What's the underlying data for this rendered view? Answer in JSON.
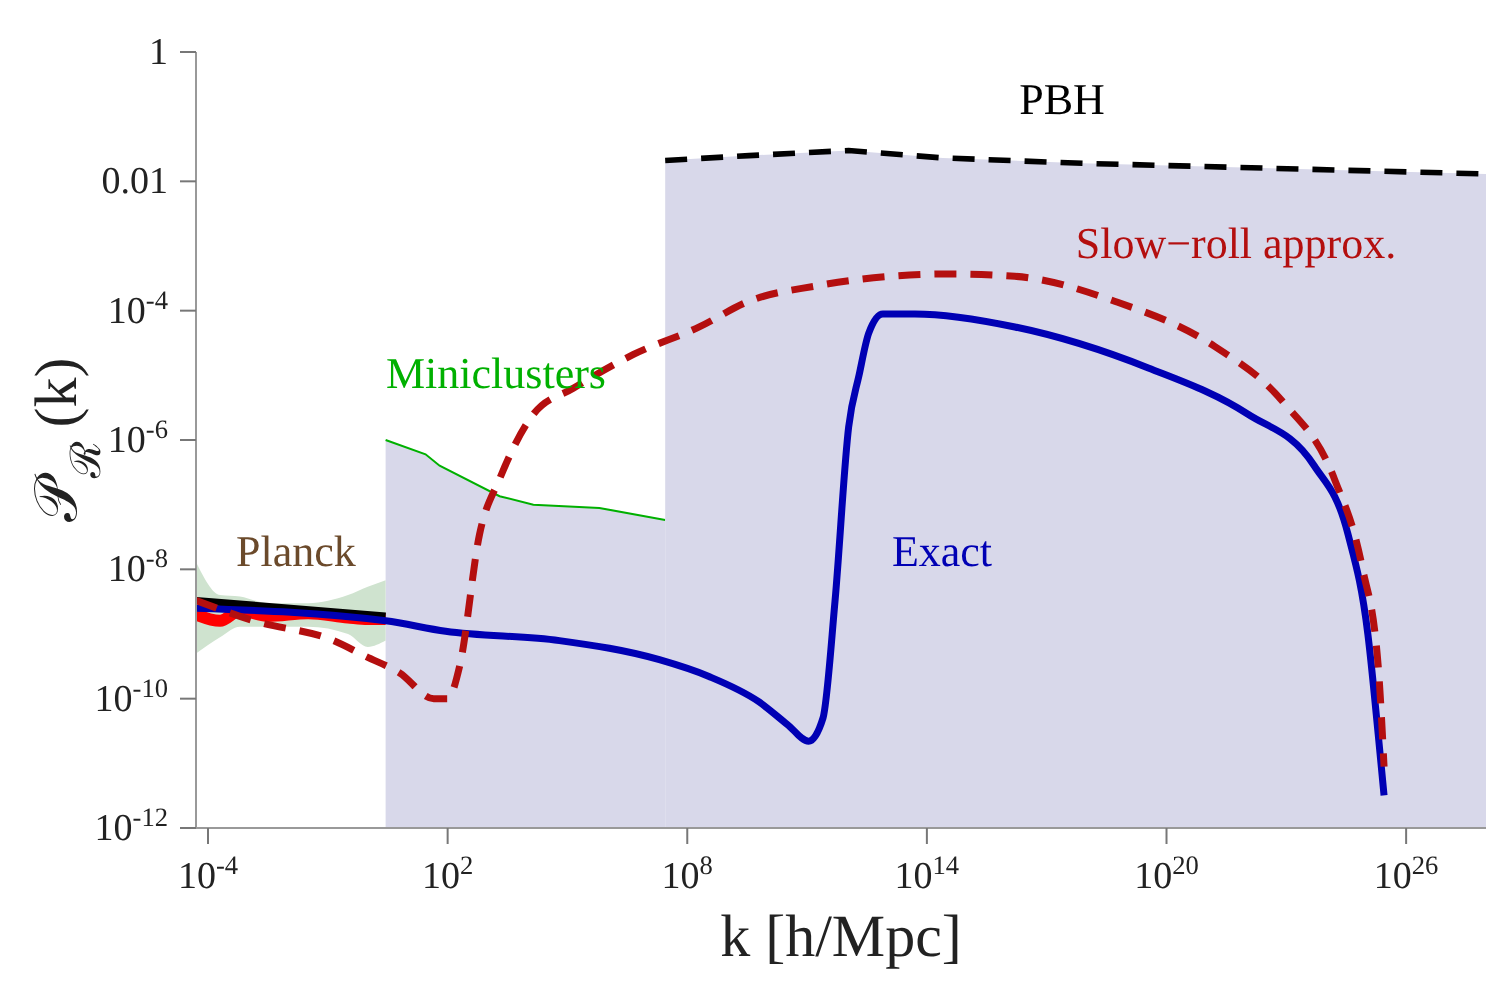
{
  "chart_data": {
    "type": "line",
    "xlabel": "k  [h/Mpc]",
    "ylabel": "𝒫$_{ℛ}$  (k)",
    "log": "xy",
    "xlim": [
      5e-05,
      1e+28
    ],
    "xticks": [
      {
        "value": 0.0001,
        "label": "10$^{-4}$"
      },
      {
        "value": 100,
        "label": "10$^{2}$"
      },
      {
        "value": 100000000.0,
        "label": "10$^{8}$"
      },
      {
        "value": 100000000000000.0,
        "label": "10$^{14}$"
      },
      {
        "value": 1e+20,
        "label": "10$^{20}$"
      },
      {
        "value": 1e+26,
        "label": "10$^{26}$"
      }
    ],
    "ylim": [
      1e-12,
      1
    ],
    "yticks": [
      1,
      0.01,
      {
        "value": 0.0001,
        "label": "10$^{-4}$"
      },
      {
        "value": 1e-06,
        "label": "10$^{-6}$"
      },
      {
        "value": 1e-08,
        "label": "10$^{-8}$"
      },
      {
        "value": 1e-10,
        "label": "10$^{-10}$"
      },
      {
        "value": 1e-12,
        "label": "10$^{-12}$"
      }
    ],
    "grid": false,
    "series": [
      {
        "name": "Miniclusters",
        "type": "area",
        "color": "#00b000",
        "x": [
          2.8,
          28,
          63,
          2000,
          14000,
          630000,
          28000000.0
        ],
        "values": [
          1e-06,
          6e-07,
          4e-07,
          1.35e-07,
          1e-07,
          8.9e-08,
          5.8e-08
        ]
      },
      {
        "name": "PBH",
        "type": "area",
        "color": "#000000",
        "line_style": "dashed",
        "x": [
          28000000.0,
          3500000000.0,
          1100000000000.0,
          250000000000000.0,
          7.9e+17,
          1e+28
        ],
        "values": [
          0.021,
          0.025,
          0.03,
          0.023,
          0.019,
          0.013
        ]
      },
      {
        "name": "Planck",
        "color": "#ff0000",
        "x": [
          5e-05,
          0.0002,
          0.00063,
          0.0032,
          0.032,
          0.32,
          1,
          2.8
        ],
        "values": [
          2e-09,
          1.6e-09,
          2.3e-09,
          1.9e-09,
          2.1e-09,
          1.8e-09,
          1.7e-09,
          1.7e-09
        ],
        "lower": [
          5e-10,
          8.9e-10,
          1.3e-09,
          1.3e-09,
          1.3e-09,
          1e-09,
          6.3e-10,
          7.9e-10
        ],
        "upper": [
          1.3e-08,
          4e-09,
          3.8e-09,
          3e-09,
          3e-09,
          4e-09,
          5.4e-09,
          6.8e-09
        ]
      },
      {
        "color": "#000000",
        "x": [
          5e-05,
          2.8
        ],
        "values": [
          3.3e-09,
          1.9e-09
        ]
      },
      {
        "name": "Exact",
        "color": "#0000b4",
        "x": [
          5e-05,
          2.8,
          89,
          63000,
          20000000.0,
          350000000.0,
          6300000000.0,
          32000000000.0,
          110000000000.0,
          250000000000.0,
          500000000000.0,
          1100000000000.0,
          2000000000000.0,
          3500000000000.0,
          7900000000000.0,
          50000000000000.0,
          1.6e+16,
          3.5e+19,
          1.1e+22,
          5e+23,
          3.5e+24,
          1.1e+25,
          2e+25,
          2.8e+25
        ],
        "values": [
          2.5e-09,
          1.6e-09,
          1.1e-09,
          7.9e-10,
          4e-10,
          2.2e-10,
          8.9e-11,
          4e-11,
          2.2e-11,
          5e-11,
          3.2e-09,
          1.6e-06,
          1e-05,
          4.5e-05,
          8.9e-05,
          8.9e-05,
          5.6e-05,
          1.3e-05,
          2.5e-06,
          4e-07,
          3.5e-08,
          1e-09,
          2.8e-11,
          3.2e-12
        ]
      },
      {
        "name": "Slow−roll approx.",
        "color": "#b40f0f",
        "line_style": "dashed",
        "x": [
          5e-05,
          0.0014,
          0.14,
          0.9,
          6.3,
          45,
          100,
          200,
          630,
          2000,
          14000,
          140000,
          4500000.0,
          200000000.0,
          3500000000.0,
          160000000000.0,
          350000000000000.0,
          1.6e+16,
          5e+18,
          1.6e+21,
          7.9e+22,
          1.6e+24,
          7.9e+24,
          2e+25,
          2.8e+25
        ],
        "values": [
          3.3e-09,
          1.6e-09,
          7.9e-10,
          4.5e-10,
          2.5e-10,
          1e-10,
          1e-10,
          3.2e-10,
          3.5e-08,
          2.5e-07,
          2.5e-06,
          6.3e-06,
          2.1e-05,
          5.6e-05,
          0.00014,
          0.00024,
          0.00037,
          0.00034,
          0.00014,
          2.8e-05,
          4e-06,
          2.5e-07,
          1.1e-08,
          3.2e-10,
          8.9e-12
        ]
      }
    ]
  }
}
